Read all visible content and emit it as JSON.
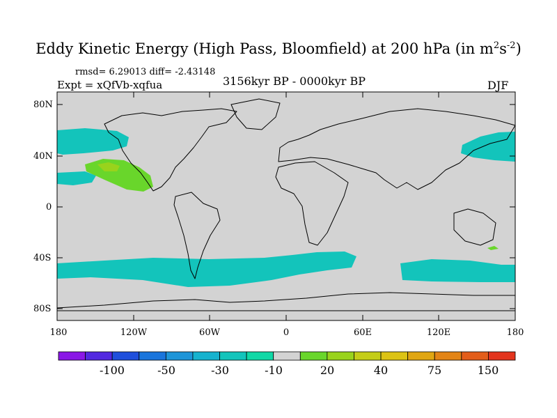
{
  "title": {
    "main": "Eddy Kinetic Energy (High Pass, Bloomfield) at 200 hPa (in m",
    "sup1": "2",
    "s": "s",
    "sup2": "-2",
    "close": ")"
  },
  "stats": {
    "text": "rmsd= 6.29013 diff= -2.43148"
  },
  "experiment": {
    "text": "Expt = xQfVb-xqfua"
  },
  "period": {
    "text": "3156kyr BP - 0000kyr BP"
  },
  "season": {
    "text": "DJF"
  },
  "map": {
    "lat_labels": [
      "80N",
      "40N",
      "0",
      "40S",
      "80S"
    ],
    "lon_labels": [
      "180",
      "120W",
      "60W",
      "0",
      "60E",
      "120E",
      "180"
    ],
    "background_color": "#d3d3d3",
    "anomaly_regions": [
      {
        "name": "North Pacific west",
        "level": "-10"
      },
      {
        "name": "Central Pacific east",
        "level": "20"
      },
      {
        "name": "Central Pacific core",
        "level": "40"
      },
      {
        "name": "Southern Ocean belt",
        "level": "-10"
      },
      {
        "name": "South Pacific small",
        "level": "20"
      }
    ]
  },
  "colorbar": {
    "labels": [
      "-100",
      "-50",
      "-30",
      "-10",
      "20",
      "40",
      "75",
      "150"
    ],
    "colors": [
      "#8a17e6",
      "#5228e0",
      "#1f4fdc",
      "#1a75dc",
      "#1e95d8",
      "#16b2ce",
      "#13c4bb",
      "#10d8a6",
      "#d3d3d3",
      "#69d62b",
      "#99d31c",
      "#c4cd18",
      "#dcc314",
      "#e0a612",
      "#e38416",
      "#e35d1a",
      "#e3341d"
    ]
  }
}
